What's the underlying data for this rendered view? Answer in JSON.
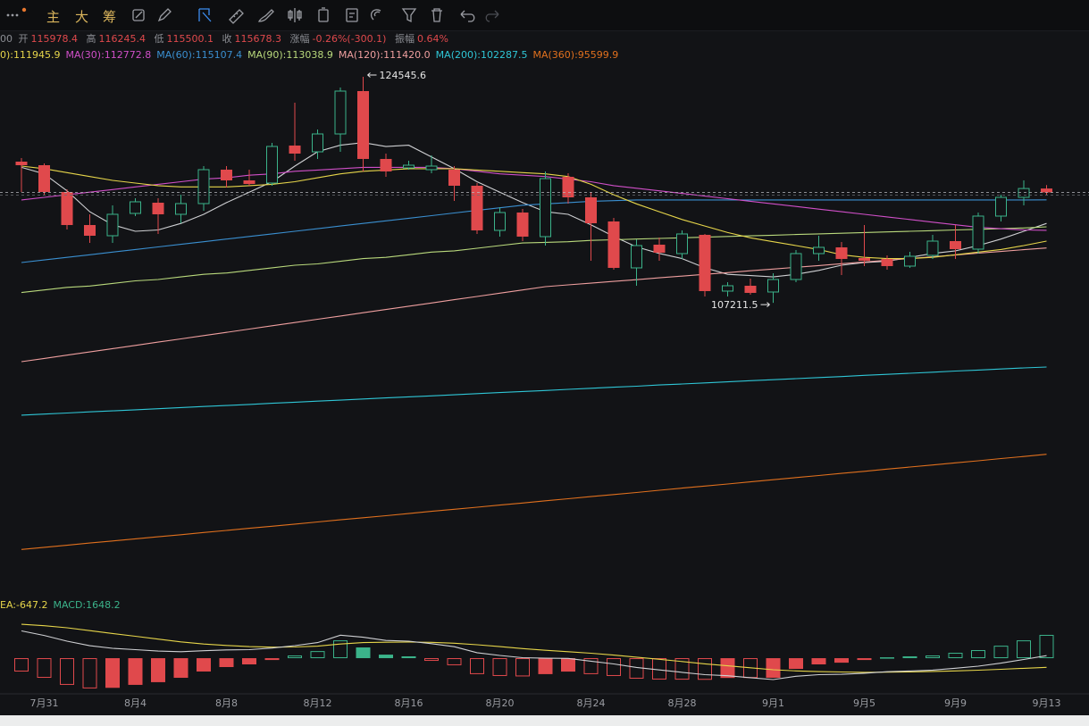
{
  "toolbar": {
    "buttons": [
      "主",
      "大",
      "筹"
    ]
  },
  "info": {
    "time": "00",
    "labels": [
      "开",
      "高",
      "低",
      "收"
    ],
    "change_label": "涨幅",
    "change": "-0.26%(-300.1)",
    "amplitude_label": "振幅",
    "amplitude": "0.64%"
  },
  "chart_data": [
    {
      "type": "candlestick",
      "categories": [
        null,
        "7月31",
        null,
        null,
        null,
        "8月4",
        null,
        null,
        null,
        "8月8",
        null,
        null,
        null,
        "8月12",
        null,
        null,
        null,
        "8月16",
        null,
        null,
        null,
        "8月20",
        null,
        null,
        null,
        "8月24",
        null,
        null,
        null,
        "8月28",
        null,
        null,
        null,
        "9月1",
        null,
        null,
        null,
        "9月5",
        null,
        null,
        null,
        "9月9",
        null,
        null,
        null,
        "9月13"
      ],
      "open": [
        118041,
        117767,
        115713,
        113179,
        112357,
        114069,
        114891,
        114001,
        114823,
        117425,
        116603,
        116398,
        119274,
        118794,
        120164,
        123451,
        118247,
        117562,
        117425,
        117425,
        116192,
        112768,
        114138,
        112289,
        116877,
        115302,
        113453,
        109892,
        111672,
        110988,
        112426,
        108112,
        108522,
        108043,
        109002,
        110988,
        111467,
        110645,
        110577,
        110029,
        110851,
        111946,
        111330,
        113864,
        115302,
        115978.4
      ],
      "high": [
        118315,
        117904,
        115918,
        114001,
        114686,
        115233,
        115233,
        115507,
        117699,
        117699,
        117425,
        119479,
        122561,
        120506,
        123725,
        124545.6,
        118657,
        118110,
        118520,
        117699,
        116398,
        114549,
        114412,
        117288,
        117151,
        115713,
        113727,
        112083,
        112220,
        112768,
        112494,
        108796,
        109070,
        109481,
        111262,
        112357,
        111878,
        113179,
        110851,
        111125,
        112426,
        113179,
        114138,
        115507,
        116603,
        116245.4
      ],
      "low": [
        115713,
        115507,
        112837,
        111809,
        111809,
        113864,
        112494,
        113316,
        114275,
        116055,
        116192,
        116192,
        118110,
        118247,
        118794,
        117288,
        116877,
        117425,
        117151,
        115028,
        112494,
        112289,
        111946,
        111604,
        114823,
        110440,
        109755,
        108522,
        110440,
        110577,
        107701,
        107701,
        107838,
        107211.5,
        108796,
        110440,
        109344,
        110029,
        109755,
        109892,
        110577,
        110577,
        110988,
        113453,
        114686,
        115500.1
      ],
      "close": [
        117767,
        115713,
        113179,
        112357,
        114001,
        114960,
        114001,
        114823,
        117425,
        116603,
        116329,
        119205,
        118657,
        120164,
        123451,
        118247,
        117288,
        117767,
        117699,
        116192,
        112768,
        114138,
        112289,
        116740,
        115302,
        113316,
        109892,
        111604,
        111056,
        112494,
        108112,
        108522,
        107975,
        109002,
        110988,
        111467,
        110577,
        110440,
        110029,
        110782,
        111946,
        111330,
        113864,
        115302,
        115980,
        115678.3
      ],
      "up_color": "#3bb38a",
      "down_color": "#e0494c",
      "ylim": [
        85100,
        125300
      ],
      "series": [
        {
          "name": "0):111945.9",
          "color": "#e6d54a",
          "values": [
            117700,
            117500,
            117200,
            116900,
            116600,
            116400,
            116200,
            116100,
            116100,
            116100,
            116200,
            116300,
            116500,
            116800,
            117100,
            117300,
            117400,
            117500,
            117500,
            117500,
            117400,
            117300,
            117200,
            117100,
            116900,
            116300,
            115500,
            114800,
            114200,
            113600,
            113100,
            112600,
            112200,
            111900,
            111600,
            111300,
            110900,
            110700,
            110600,
            110600,
            110700,
            110900,
            111100,
            111300,
            111600,
            111945.9
          ]
        },
        {
          "name": "MA(30):112772.8",
          "color": "#d04fc8",
          "values": [
            115100,
            115300,
            115500,
            115700,
            115900,
            116100,
            116300,
            116500,
            116700,
            116800,
            117000,
            117100,
            117300,
            117400,
            117500,
            117600,
            117600,
            117600,
            117600,
            117500,
            117300,
            117100,
            117000,
            116900,
            116700,
            116500,
            116200,
            116000,
            115800,
            115600,
            115400,
            115200,
            115000,
            114800,
            114600,
            114400,
            114200,
            114000,
            113800,
            113600,
            113400,
            113200,
            113000,
            112900,
            112800,
            112772.8
          ]
        },
        {
          "name": "MA(60):115107.4",
          "color": "#3a8fd0",
          "values": [
            110300,
            110500,
            110700,
            110900,
            111100,
            111300,
            111500,
            111700,
            111900,
            112100,
            112300,
            112500,
            112700,
            112900,
            113100,
            113300,
            113500,
            113700,
            113900,
            114100,
            114300,
            114500,
            114700,
            114800,
            114900,
            115000,
            115050,
            115100,
            115100,
            115100,
            115100,
            115100,
            115100,
            115100,
            115100,
            115100,
            115100,
            115100,
            115100,
            115100,
            115100,
            115100,
            115100,
            115100,
            115100,
            115107.4
          ]
        },
        {
          "name": "MA(90):113038.9",
          "color": "#b9d97c",
          "values": [
            108000,
            108200,
            108400,
            108500,
            108700,
            108900,
            109000,
            109200,
            109400,
            109500,
            109700,
            109900,
            110100,
            110200,
            110400,
            110600,
            110700,
            110900,
            111100,
            111200,
            111400,
            111600,
            111800,
            111850,
            111900,
            112000,
            112050,
            112100,
            112150,
            112200,
            112250,
            112300,
            112350,
            112400,
            112450,
            112500,
            112550,
            112600,
            112650,
            112700,
            112750,
            112800,
            112850,
            112900,
            112950,
            113038.9
          ]
        },
        {
          "name": "MA(120):111420.0",
          "color": "#ef9f9f",
          "values": [
            102700,
            102950,
            103200,
            103450,
            103700,
            103950,
            104200,
            104450,
            104700,
            104950,
            105200,
            105450,
            105700,
            105950,
            106200,
            106450,
            106700,
            106950,
            107200,
            107450,
            107700,
            107950,
            108200,
            108450,
            108590,
            108720,
            108860,
            108990,
            109130,
            109260,
            109400,
            109530,
            109670,
            109800,
            109940,
            110070,
            110210,
            110340,
            110480,
            110610,
            110750,
            110880,
            111020,
            111150,
            111290,
            111420
          ]
        },
        {
          "name": "MA(200):102287.5",
          "color": "#2fc6d6",
          "values": [
            98600,
            98680,
            98760,
            98850,
            98930,
            99010,
            99090,
            99180,
            99260,
            99340,
            99420,
            99510,
            99590,
            99670,
            99750,
            99840,
            99920,
            100000,
            100080,
            100160,
            100250,
            100330,
            100410,
            100490,
            100580,
            100660,
            100740,
            100820,
            100910,
            100990,
            101070,
            101150,
            101240,
            101320,
            101400,
            101480,
            101560,
            101650,
            101730,
            101810,
            101890,
            101980,
            102060,
            102140,
            102220,
            102287.5
          ]
        },
        {
          "name": "MA(360):95599.9",
          "color": "#e0701e",
          "values": [
            88300,
            88460,
            88620,
            88790,
            88950,
            89110,
            89270,
            89430,
            89600,
            89760,
            89920,
            90080,
            90240,
            90410,
            90570,
            90730,
            90890,
            91050,
            91220,
            91380,
            91540,
            91700,
            91860,
            92030,
            92190,
            92350,
            92510,
            92670,
            92840,
            93000,
            93160,
            93320,
            93480,
            93650,
            93810,
            93970,
            94130,
            94290,
            94460,
            94620,
            94780,
            94940,
            95100,
            95270,
            95430,
            95599.9
          ]
        },
        {
          "color": "#cfd0d3",
          "values": [
            117600,
            117100,
            115800,
            114200,
            113200,
            112700,
            112800,
            113300,
            114000,
            114900,
            115700,
            116500,
            117700,
            118800,
            119300,
            119500,
            119200,
            119300,
            118400,
            117500,
            116500,
            115700,
            114900,
            114200,
            114000,
            113200,
            112300,
            111500,
            111000,
            110600,
            109900,
            109400,
            109300,
            109200,
            109400,
            109700,
            110100,
            110300,
            110400,
            110700,
            111000,
            111200,
            111600,
            112100,
            112700,
            113300
          ]
        }
      ]
    },
    {
      "type": "bar",
      "ylim": [
        -2400,
        3100
      ],
      "series": [
        {
          "name": "EA:-647.2",
          "type": "line",
          "color": "#e6d54a",
          "values": [
            2400,
            2300,
            2150,
            1950,
            1750,
            1550,
            1350,
            1150,
            1000,
            900,
            820,
            780,
            790,
            850,
            1000,
            1100,
            1130,
            1140,
            1120,
            1060,
            950,
            820,
            680,
            560,
            460,
            350,
            220,
            70,
            -80,
            -240,
            -400,
            -540,
            -680,
            -820,
            -900,
            -950,
            -980,
            -1000,
            -990,
            -970,
            -940,
            -900,
            -850,
            -790,
            -720,
            -647.2
          ]
        },
        {
          "name": "MACD:1648.2",
          "type": "bar",
          "color": "#3bb38a",
          "down_color": "#e0494c",
          "values": [
            -945,
            -1390,
            -1890,
            -2140,
            -2100,
            -1890,
            -1700,
            -1390,
            -945,
            -630,
            -440,
            -130,
            190,
            500,
            1260,
            760,
            250,
            130,
            -190,
            -500,
            -1130,
            -1260,
            -1290,
            -1130,
            -950,
            -1130,
            -1260,
            -1450,
            -1510,
            -1520,
            -1530,
            -1400,
            -1400,
            -1390,
            -760,
            -440,
            -320,
            -130,
            60,
            130,
            190,
            380,
            570,
            880,
            1260,
            1648.2
          ]
        },
        {
          "type": "line",
          "color": "#cfd0d3",
          "values": [
            1930,
            1605,
            1205,
            880,
            700,
            605,
            500,
            455,
            530,
            585,
            600,
            715,
            885,
            1100,
            1630,
            1480,
            1255,
            1205,
            1025,
            810,
            385,
            190,
            35,
            -5,
            -15,
            -215,
            -410,
            -655,
            -835,
            -1000,
            -1165,
            -1240,
            -1380,
            -1515,
            -1280,
            -1170,
            -1140,
            -1065,
            -960,
            -905,
            -845,
            -710,
            -565,
            -350,
            -90,
            176.9
          ]
        }
      ]
    }
  ]
}
